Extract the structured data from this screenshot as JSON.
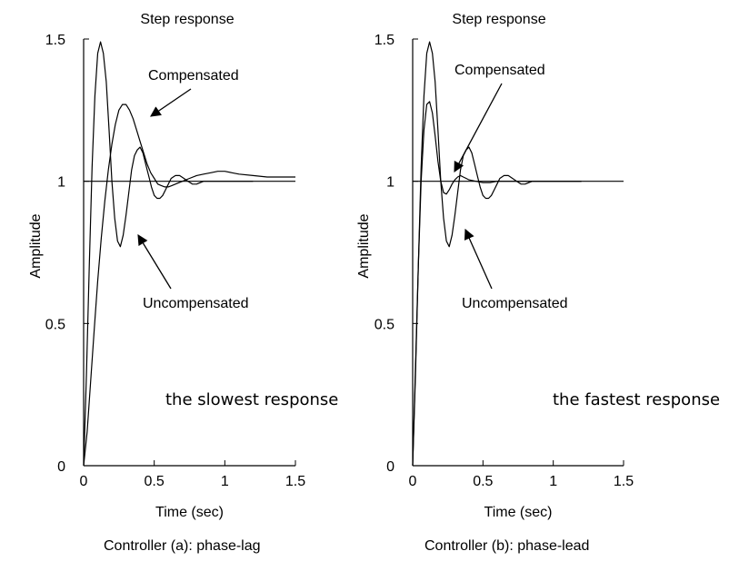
{
  "chart_data": [
    {
      "type": "line",
      "title": "Step response",
      "xlabel": "Time (sec)",
      "ylabel": "Amplitude",
      "xlim": [
        0,
        1.5
      ],
      "ylim": [
        0,
        1.5
      ],
      "xticks": [
        "0",
        "0.5",
        "1",
        "1.5"
      ],
      "yticks": [
        "0",
        "0.5",
        "1",
        "1.5"
      ],
      "grid": false,
      "reference_line": 1,
      "caption": "Controller (a): phase-lag",
      "note": "the slowest response",
      "series": [
        {
          "name": "Uncompensated",
          "x": [
            0,
            0.02,
            0.04,
            0.06,
            0.08,
            0.1,
            0.12,
            0.14,
            0.16,
            0.18,
            0.2,
            0.22,
            0.24,
            0.26,
            0.28,
            0.3,
            0.32,
            0.34,
            0.36,
            0.38,
            0.4,
            0.42,
            0.44,
            0.46,
            0.48,
            0.5,
            0.52,
            0.54,
            0.56,
            0.58,
            0.6,
            0.62,
            0.65,
            0.68,
            0.71,
            0.74,
            0.77,
            0.8,
            0.85,
            0.9,
            0.95,
            1.0,
            1.1,
            1.2
          ],
          "values": [
            0,
            0.32,
            0.7,
            1.05,
            1.3,
            1.45,
            1.49,
            1.45,
            1.35,
            1.18,
            1.0,
            0.87,
            0.79,
            0.77,
            0.81,
            0.88,
            0.96,
            1.04,
            1.09,
            1.11,
            1.12,
            1.1,
            1.06,
            1.02,
            0.98,
            0.95,
            0.94,
            0.94,
            0.95,
            0.97,
            0.99,
            1.01,
            1.02,
            1.02,
            1.01,
            1.0,
            0.99,
            0.99,
            1.0,
            1.0,
            1.0,
            1.0,
            1.0,
            1.0
          ]
        },
        {
          "name": "Compensated",
          "x": [
            0,
            0.025,
            0.05,
            0.075,
            0.1,
            0.125,
            0.15,
            0.175,
            0.2,
            0.225,
            0.25,
            0.275,
            0.3,
            0.325,
            0.35,
            0.375,
            0.4,
            0.425,
            0.45,
            0.475,
            0.5,
            0.525,
            0.55,
            0.575,
            0.6,
            0.625,
            0.65,
            0.7,
            0.75,
            0.8,
            0.85,
            0.9,
            0.95,
            1.0,
            1.05,
            1.1,
            1.2,
            1.3,
            1.4,
            1.5
          ],
          "values": [
            0,
            0.12,
            0.3,
            0.48,
            0.65,
            0.8,
            0.93,
            1.04,
            1.13,
            1.2,
            1.25,
            1.27,
            1.27,
            1.25,
            1.22,
            1.18,
            1.14,
            1.1,
            1.06,
            1.03,
            1.01,
            0.99,
            0.985,
            0.98,
            0.98,
            0.985,
            0.99,
            1.0,
            1.01,
            1.02,
            1.025,
            1.03,
            1.035,
            1.035,
            1.03,
            1.025,
            1.02,
            1.015,
            1.015,
            1.015
          ]
        }
      ],
      "annotations": [
        "Compensated",
        "Uncompensated"
      ]
    },
    {
      "type": "line",
      "title": "Step response",
      "xlabel": "Time (sec)",
      "ylabel": "Amplitude",
      "xlim": [
        0,
        1.5
      ],
      "ylim": [
        0,
        1.5
      ],
      "xticks": [
        "0",
        "0.5",
        "1",
        "1.5"
      ],
      "yticks": [
        "0",
        "0.5",
        "1",
        "1.5"
      ],
      "grid": false,
      "reference_line": 1,
      "caption": "Controller (b): phase-lead",
      "note": "the fastest response",
      "series": [
        {
          "name": "Uncompensated",
          "x": [
            0,
            0.02,
            0.04,
            0.06,
            0.08,
            0.1,
            0.12,
            0.14,
            0.16,
            0.18,
            0.2,
            0.22,
            0.24,
            0.26,
            0.28,
            0.3,
            0.32,
            0.34,
            0.36,
            0.38,
            0.4,
            0.42,
            0.44,
            0.46,
            0.48,
            0.5,
            0.52,
            0.54,
            0.56,
            0.58,
            0.6,
            0.62,
            0.65,
            0.68,
            0.71,
            0.74,
            0.77,
            0.8,
            0.85,
            0.9,
            0.95,
            1.0,
            1.1,
            1.2
          ],
          "values": [
            0,
            0.32,
            0.7,
            1.05,
            1.3,
            1.45,
            1.49,
            1.45,
            1.35,
            1.18,
            1.0,
            0.87,
            0.79,
            0.77,
            0.81,
            0.88,
            0.96,
            1.04,
            1.09,
            1.11,
            1.12,
            1.1,
            1.06,
            1.02,
            0.98,
            0.95,
            0.94,
            0.94,
            0.95,
            0.97,
            0.99,
            1.01,
            1.02,
            1.02,
            1.01,
            1.0,
            0.99,
            0.99,
            1.0,
            1.0,
            1.0,
            1.0,
            1.0,
            1.0
          ]
        },
        {
          "name": "Compensated",
          "x": [
            0,
            0.02,
            0.04,
            0.06,
            0.08,
            0.1,
            0.12,
            0.14,
            0.16,
            0.18,
            0.2,
            0.22,
            0.24,
            0.26,
            0.28,
            0.3,
            0.32,
            0.34,
            0.36,
            0.38,
            0.4,
            0.45,
            0.5,
            0.55,
            0.6,
            0.7,
            0.8,
            0.9,
            1.0,
            1.1,
            1.2
          ],
          "values": [
            0,
            0.35,
            0.7,
            1.0,
            1.18,
            1.27,
            1.28,
            1.24,
            1.16,
            1.07,
            1.0,
            0.96,
            0.955,
            0.97,
            0.99,
            1.005,
            1.015,
            1.02,
            1.015,
            1.01,
            1.005,
            1.0,
            0.995,
            0.995,
            1.0,
            1.0,
            1.0,
            1.0,
            1.0,
            1.0,
            1.0
          ]
        }
      ],
      "annotations": [
        "Compensated",
        "Uncompensated"
      ]
    }
  ]
}
